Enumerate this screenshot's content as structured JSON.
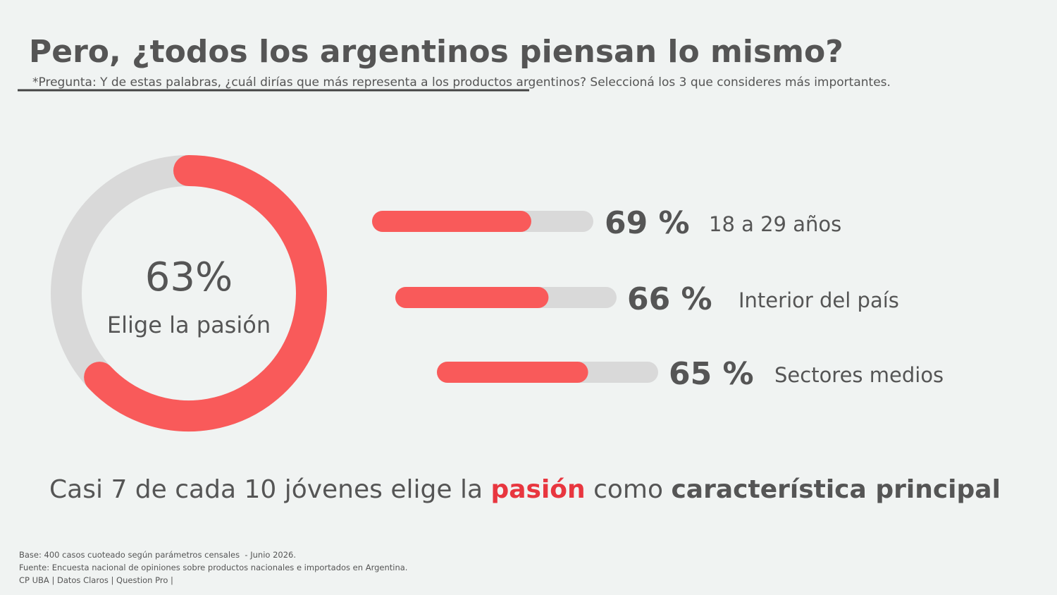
{
  "title": "Pero, ¿todos los argentinos piensan lo mismo?",
  "subtitle": "*Pregunta: Y de estas palabras, ¿cuál dirías que más representa a los productos argentinos? Seleccioná los 3 que consideres más importantes.",
  "chart_data": [
    {
      "type": "donut",
      "value": 63,
      "value_label": "63%",
      "caption": "Elige la pasión",
      "color": "#f95a5a"
    },
    {
      "type": "bar",
      "orientation": "horizontal",
      "categories": [
        "18 a 29 años",
        "Interior del país",
        "Sectores medios"
      ],
      "values": [
        69,
        66,
        65
      ],
      "value_labels": [
        "69 %",
        "66 %",
        "65 %"
      ],
      "xlim": [
        0,
        100
      ],
      "color": "#f95a5a"
    }
  ],
  "headline": {
    "parts": [
      "Casi 7 de cada 10 jóvenes elige la ",
      "pasión",
      " como ",
      "característica principal"
    ]
  },
  "footer": [
    "Base: 400 casos cuoteado según parámetros censales  - Junio 2026.",
    "Fuente: Encuesta nacional de opiniones sobre productos nacionales e importados en Argentina.",
    "CP UBA | Datos Claros | Question Pro |"
  ]
}
